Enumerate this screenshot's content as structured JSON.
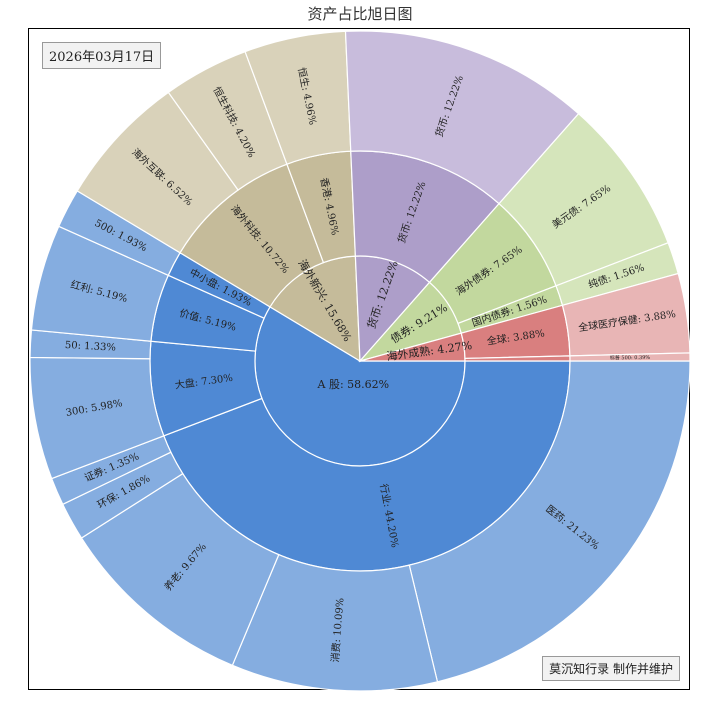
{
  "chart_data": {
    "type": "sunburst",
    "title": "资产占比旭日图",
    "date_label": "2026年03月17日",
    "credit": "莫沉知行录 制作并维护",
    "start_angle_deg": 0,
    "direction": "clockwise",
    "nodes": [
      {
        "name": "A股",
        "value": 58.62,
        "label": "A 股: 58.62%",
        "color": "#4f89d4",
        "children": [
          {
            "name": "行业",
            "value": 44.2,
            "label": "行业: 44.20%",
            "color": "#4f89d4",
            "children": [
              {
                "name": "医药",
                "value": 21.23,
                "label": "医药: 21.23%",
                "color": "#85ade0"
              },
              {
                "name": "消费",
                "value": 10.09,
                "label": "消费: 10.09%",
                "color": "#85ade0"
              },
              {
                "name": "养老",
                "value": 9.67,
                "label": "养老: 9.67%",
                "color": "#85ade0"
              },
              {
                "name": "环保",
                "value": 1.86,
                "label": "环保: 1.86%",
                "color": "#85ade0"
              },
              {
                "name": "证券",
                "value": 1.35,
                "label": "证券: 1.35%",
                "color": "#85ade0"
              }
            ]
          },
          {
            "name": "大盘",
            "value": 7.3,
            "label": "大盘: 7.30%",
            "color": "#4f89d4",
            "children": [
              {
                "name": "300",
                "value": 5.98,
                "label": "300: 5.98%",
                "color": "#85ade0"
              },
              {
                "name": "50",
                "value": 1.33,
                "label": "50: 1.33%",
                "color": "#85ade0"
              }
            ]
          },
          {
            "name": "价值",
            "value": 5.19,
            "label": "价值: 5.19%",
            "color": "#4f89d4",
            "children": [
              {
                "name": "红利",
                "value": 5.19,
                "label": "红利: 5.19%",
                "color": "#85ade0"
              }
            ]
          },
          {
            "name": "中小盘",
            "value": 1.93,
            "label": "中小盘: 1.93%",
            "color": "#4f89d4",
            "children": [
              {
                "name": "500",
                "value": 1.93,
                "label": "500: 1.93%",
                "color": "#85ade0"
              }
            ]
          }
        ]
      },
      {
        "name": "海外新兴",
        "value": 15.68,
        "label": "海外新兴: 15.68%",
        "color": "#c5bb9a",
        "children": [
          {
            "name": "海外科技",
            "value": 10.72,
            "label": "海外科技: 10.72%",
            "color": "#c5bb9a",
            "children": [
              {
                "name": "海外互联",
                "value": 6.52,
                "label": "海外互联: 6.52%",
                "color": "#d9d2ba"
              },
              {
                "name": "恒生科技",
                "value": 4.2,
                "label": "恒生科技: 4.20%",
                "color": "#d9d2ba"
              }
            ]
          },
          {
            "name": "香港",
            "value": 4.96,
            "label": "香港: 4.96%",
            "color": "#c5bb9a",
            "children": [
              {
                "name": "恒生",
                "value": 4.96,
                "label": "恒生: 4.96%",
                "color": "#d9d2ba"
              }
            ]
          }
        ]
      },
      {
        "name": "货币",
        "value": 12.22,
        "label": "货币: 12.22%",
        "color": "#ad9ec9",
        "children": [
          {
            "name": "货币",
            "value": 12.22,
            "label": "货币: 12.22%",
            "color": "#ad9ec9",
            "children": [
              {
                "name": "货币",
                "value": 12.22,
                "label": "货币: 12.22%",
                "color": "#c8bcdc"
              }
            ]
          }
        ]
      },
      {
        "name": "债券",
        "value": 9.21,
        "label": "债券: 9.21%",
        "color": "#c2d89e",
        "children": [
          {
            "name": "海外债券",
            "value": 7.65,
            "label": "海外债券: 7.65%",
            "color": "#c2d89e",
            "children": [
              {
                "name": "美元债",
                "value": 7.65,
                "label": "美元债: 7.65%",
                "color": "#d5e5bb"
              }
            ]
          },
          {
            "name": "国内债券",
            "value": 1.56,
            "label": "国内债券: 1.56%",
            "color": "#c2d89e",
            "children": [
              {
                "name": "纯债",
                "value": 1.56,
                "label": "纯债: 1.56%",
                "color": "#d5e5bb"
              }
            ]
          }
        ]
      },
      {
        "name": "海外成熟",
        "value": 4.27,
        "label": "海外成熟: 4.27%",
        "color": "#d97f7f",
        "children": [
          {
            "name": "全球",
            "value": 3.88,
            "label": "全球: 3.88%",
            "color": "#d97f7f",
            "children": [
              {
                "name": "全球医疗保健",
                "value": 3.88,
                "label": "全球医疗保健: 3.88%",
                "color": "#e8b5b5"
              }
            ]
          },
          {
            "name": "美国",
            "value": 0.39,
            "label": "",
            "color": "#d97f7f",
            "children": [
              {
                "name": "标普500",
                "value": 0.39,
                "label": "标普 500: 0.39%",
                "color": "#e8b5b5"
              }
            ]
          }
        ]
      }
    ]
  }
}
